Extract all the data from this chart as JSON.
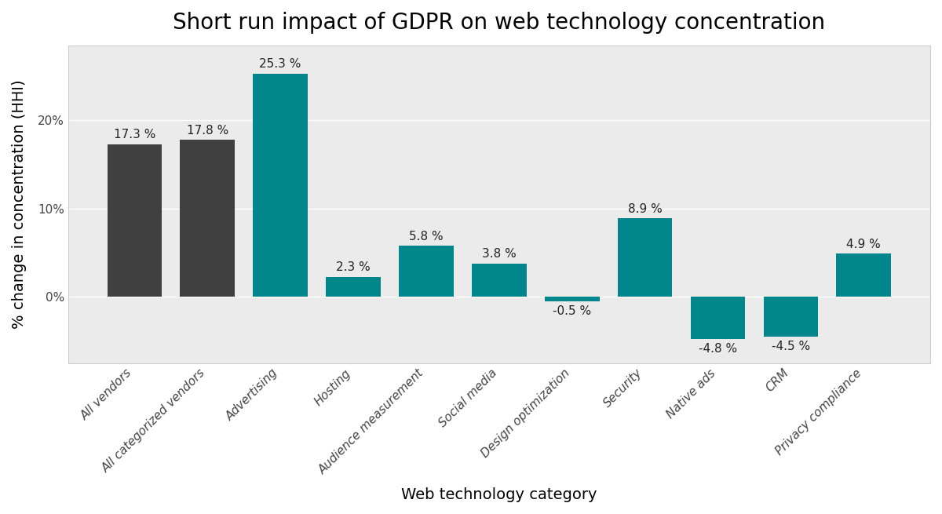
{
  "title": "Short run impact of GDPR on web technology concentration",
  "xlabel": "Web technology category",
  "ylabel": "% change in concentration (HHI)",
  "categories": [
    "All vendors",
    "All categorized vendors",
    "Advertising",
    "Hosting",
    "Audience measurement",
    "Social media",
    "Design optimization",
    "Security",
    "Native ads",
    "CRM",
    "Privacy compliance"
  ],
  "values": [
    17.3,
    17.8,
    25.3,
    2.3,
    5.8,
    3.8,
    -0.5,
    8.9,
    -4.8,
    -4.5,
    4.9
  ],
  "bar_colors": [
    "#404040",
    "#404040",
    "#00868B",
    "#00868B",
    "#00868B",
    "#00868B",
    "#00868B",
    "#00868B",
    "#00868B",
    "#00868B",
    "#00868B"
  ],
  "background_color": "#ffffff",
  "panel_color": "#ebebeb",
  "grid_color": "#ffffff",
  "border_color": "#cccccc",
  "label_fontsize": 14,
  "title_fontsize": 20,
  "tick_fontsize": 11,
  "annotation_fontsize": 11,
  "ylim": [
    -7.5,
    28.5
  ],
  "bar_width": 0.75
}
